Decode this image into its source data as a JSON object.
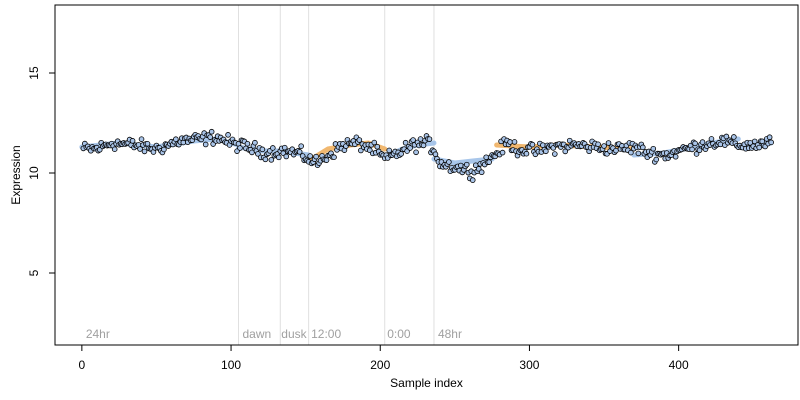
{
  "chart_data": {
    "type": "scatter",
    "title": "",
    "xlabel": "Sample index",
    "ylabel": "Expression",
    "xlim": [
      -18,
      480
    ],
    "ylim": [
      1.4,
      18.4
    ],
    "xticks": [
      0,
      100,
      200,
      300,
      400
    ],
    "yticks": [
      5,
      10,
      15
    ],
    "grid": false,
    "legend": "none",
    "colors": {
      "point_fill": "#a9c4e8",
      "point_stroke": "#000000",
      "trend_light": "#9ec0e8",
      "trend_dark": "#f0b060",
      "separator": "#e0e0e0",
      "region_text": "#a0a0a0"
    },
    "separators": [
      105,
      133,
      152,
      203,
      236
    ],
    "regions": [
      {
        "label": "24hr",
        "x": 2
      },
      {
        "label": "dawn",
        "x": 107
      },
      {
        "label": "dusk",
        "x": 133
      },
      {
        "label": "12:00",
        "x": 153
      },
      {
        "label": "0:00",
        "x": 204
      },
      {
        "label": "48hr",
        "x": 238
      }
    ],
    "trend": [
      {
        "x": [
          0,
          25,
          50,
          75,
          90,
          105
        ],
        "y": [
          11.3,
          11.5,
          11.3,
          11.6,
          11.7,
          11.4
        ],
        "color": "light"
      },
      {
        "x": [
          105,
          120,
          133,
          152
        ],
        "y": [
          11.3,
          11.1,
          11.1,
          10.9
        ],
        "color": "light"
      },
      {
        "x": [
          152,
          165,
          180,
          192,
          203
        ],
        "y": [
          10.6,
          11.2,
          11.4,
          11.5,
          11.2
        ],
        "color": "dark"
      },
      {
        "x": [
          203,
          215,
          225,
          236
        ],
        "y": [
          10.8,
          11.2,
          11.4,
          11.5
        ],
        "color": "light"
      },
      {
        "x": [
          236,
          250,
          262,
          275
        ],
        "y": [
          10.7,
          10.5,
          10.6,
          10.7
        ],
        "color": "light"
      },
      {
        "x": [
          278,
          300,
          320,
          345,
          370
        ],
        "y": [
          11.4,
          11.3,
          11.4,
          11.3,
          11.2
        ],
        "color": "dark"
      },
      {
        "x": [
          370,
          390,
          410,
          430,
          440
        ],
        "y": [
          10.9,
          11.0,
          11.3,
          11.6,
          11.7
        ],
        "color": "light"
      },
      {
        "x": [
          440,
          450,
          462
        ],
        "y": [
          11.3,
          11.4,
          11.5
        ],
        "color": "light"
      }
    ],
    "anchors": [
      [
        0,
        11.2
      ],
      [
        10,
        11.2
      ],
      [
        20,
        11.5
      ],
      [
        35,
        11.4
      ],
      [
        50,
        11.2
      ],
      [
        65,
        11.6
      ],
      [
        80,
        11.7
      ],
      [
        90,
        11.8
      ],
      [
        100,
        11.5
      ],
      [
        105,
        11.4
      ],
      [
        115,
        11.2
      ],
      [
        125,
        11.0
      ],
      [
        133,
        11.1
      ],
      [
        145,
        11.0
      ],
      [
        152,
        10.7
      ],
      [
        158,
        10.5
      ],
      [
        165,
        10.9
      ],
      [
        175,
        11.4
      ],
      [
        185,
        11.5
      ],
      [
        195,
        11.2
      ],
      [
        203,
        10.7
      ],
      [
        212,
        11.0
      ],
      [
        222,
        11.4
      ],
      [
        232,
        11.5
      ],
      [
        236,
        11.2
      ],
      [
        240,
        10.5
      ],
      [
        250,
        10.3
      ],
      [
        262,
        10.1
      ],
      [
        270,
        10.5
      ],
      [
        278,
        11.0
      ],
      [
        285,
        11.5
      ],
      [
        292,
        11.2
      ],
      [
        305,
        11.1
      ],
      [
        315,
        11.3
      ],
      [
        330,
        11.4
      ],
      [
        345,
        11.3
      ],
      [
        360,
        11.2
      ],
      [
        370,
        11.3
      ],
      [
        380,
        11.0
      ],
      [
        392,
        10.9
      ],
      [
        400,
        11.1
      ],
      [
        410,
        11.3
      ],
      [
        420,
        11.5
      ],
      [
        430,
        11.6
      ],
      [
        438,
        11.4
      ],
      [
        450,
        11.4
      ],
      [
        462,
        11.5
      ]
    ],
    "n_points": 462
  }
}
